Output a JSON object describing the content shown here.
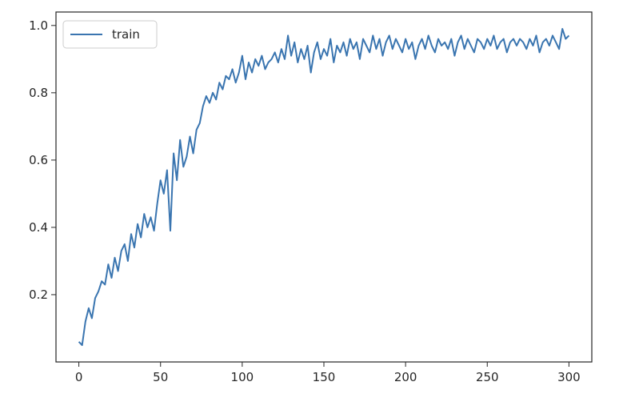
{
  "chart_data": {
    "type": "line",
    "title": "",
    "xlabel": "",
    "ylabel": "",
    "xlim": [
      -14,
      314
    ],
    "ylim": [
      0.0,
      1.04
    ],
    "grid": false,
    "legend": {
      "placement": "top-left",
      "entries": [
        "train"
      ]
    },
    "colors": {
      "train": "#3a75b0",
      "axes": "#262626",
      "background": "#ffffff"
    },
    "x_ticks": [
      0,
      50,
      100,
      150,
      200,
      250,
      300
    ],
    "x_tick_labels": [
      "0",
      "50",
      "100",
      "150",
      "200",
      "250",
      "300"
    ],
    "y_ticks": [
      0.2,
      0.4,
      0.6,
      0.8,
      1.0
    ],
    "y_tick_labels": [
      "0.2",
      "0.4",
      "0.6",
      "0.8",
      "1.0"
    ],
    "series": [
      {
        "name": "train",
        "x": [
          0,
          2,
          4,
          6,
          8,
          10,
          12,
          14,
          16,
          18,
          20,
          22,
          24,
          26,
          28,
          30,
          32,
          34,
          36,
          38,
          40,
          42,
          44,
          46,
          48,
          50,
          52,
          54,
          56,
          58,
          60,
          62,
          64,
          66,
          68,
          70,
          72,
          74,
          76,
          78,
          80,
          82,
          84,
          86,
          88,
          90,
          92,
          94,
          96,
          98,
          100,
          102,
          104,
          106,
          108,
          110,
          112,
          114,
          116,
          118,
          120,
          122,
          124,
          126,
          128,
          130,
          132,
          134,
          136,
          138,
          140,
          142,
          144,
          146,
          148,
          150,
          152,
          154,
          156,
          158,
          160,
          162,
          164,
          166,
          168,
          170,
          172,
          174,
          176,
          178,
          180,
          182,
          184,
          186,
          188,
          190,
          192,
          194,
          196,
          198,
          200,
          202,
          204,
          206,
          208,
          210,
          212,
          214,
          216,
          218,
          220,
          222,
          224,
          226,
          228,
          230,
          232,
          234,
          236,
          238,
          240,
          242,
          244,
          246,
          248,
          250,
          252,
          254,
          256,
          258,
          260,
          262,
          264,
          266,
          268,
          270,
          272,
          274,
          276,
          278,
          280,
          282,
          284,
          286,
          288,
          290,
          292,
          294,
          296,
          298,
          300
        ],
        "values": [
          0.06,
          0.05,
          0.12,
          0.16,
          0.13,
          0.19,
          0.21,
          0.24,
          0.23,
          0.29,
          0.25,
          0.31,
          0.27,
          0.33,
          0.35,
          0.3,
          0.38,
          0.34,
          0.41,
          0.37,
          0.44,
          0.4,
          0.43,
          0.39,
          0.47,
          0.54,
          0.5,
          0.57,
          0.39,
          0.62,
          0.54,
          0.66,
          0.58,
          0.61,
          0.67,
          0.62,
          0.69,
          0.71,
          0.76,
          0.79,
          0.77,
          0.8,
          0.78,
          0.83,
          0.81,
          0.85,
          0.84,
          0.87,
          0.83,
          0.86,
          0.91,
          0.84,
          0.89,
          0.86,
          0.9,
          0.88,
          0.91,
          0.87,
          0.89,
          0.9,
          0.92,
          0.89,
          0.93,
          0.9,
          0.97,
          0.91,
          0.95,
          0.89,
          0.93,
          0.9,
          0.94,
          0.86,
          0.92,
          0.95,
          0.9,
          0.93,
          0.91,
          0.96,
          0.89,
          0.94,
          0.92,
          0.95,
          0.91,
          0.96,
          0.93,
          0.95,
          0.9,
          0.96,
          0.94,
          0.92,
          0.97,
          0.93,
          0.96,
          0.91,
          0.95,
          0.97,
          0.93,
          0.96,
          0.94,
          0.92,
          0.96,
          0.93,
          0.95,
          0.9,
          0.94,
          0.96,
          0.93,
          0.97,
          0.94,
          0.92,
          0.96,
          0.94,
          0.95,
          0.93,
          0.96,
          0.91,
          0.95,
          0.97,
          0.93,
          0.96,
          0.94,
          0.92,
          0.96,
          0.95,
          0.93,
          0.96,
          0.94,
          0.97,
          0.93,
          0.95,
          0.96,
          0.92,
          0.95,
          0.96,
          0.94,
          0.96,
          0.95,
          0.93,
          0.96,
          0.94,
          0.97,
          0.92,
          0.95,
          0.96,
          0.94,
          0.97,
          0.95,
          0.93,
          0.99,
          0.96,
          0.97
        ]
      }
    ]
  }
}
